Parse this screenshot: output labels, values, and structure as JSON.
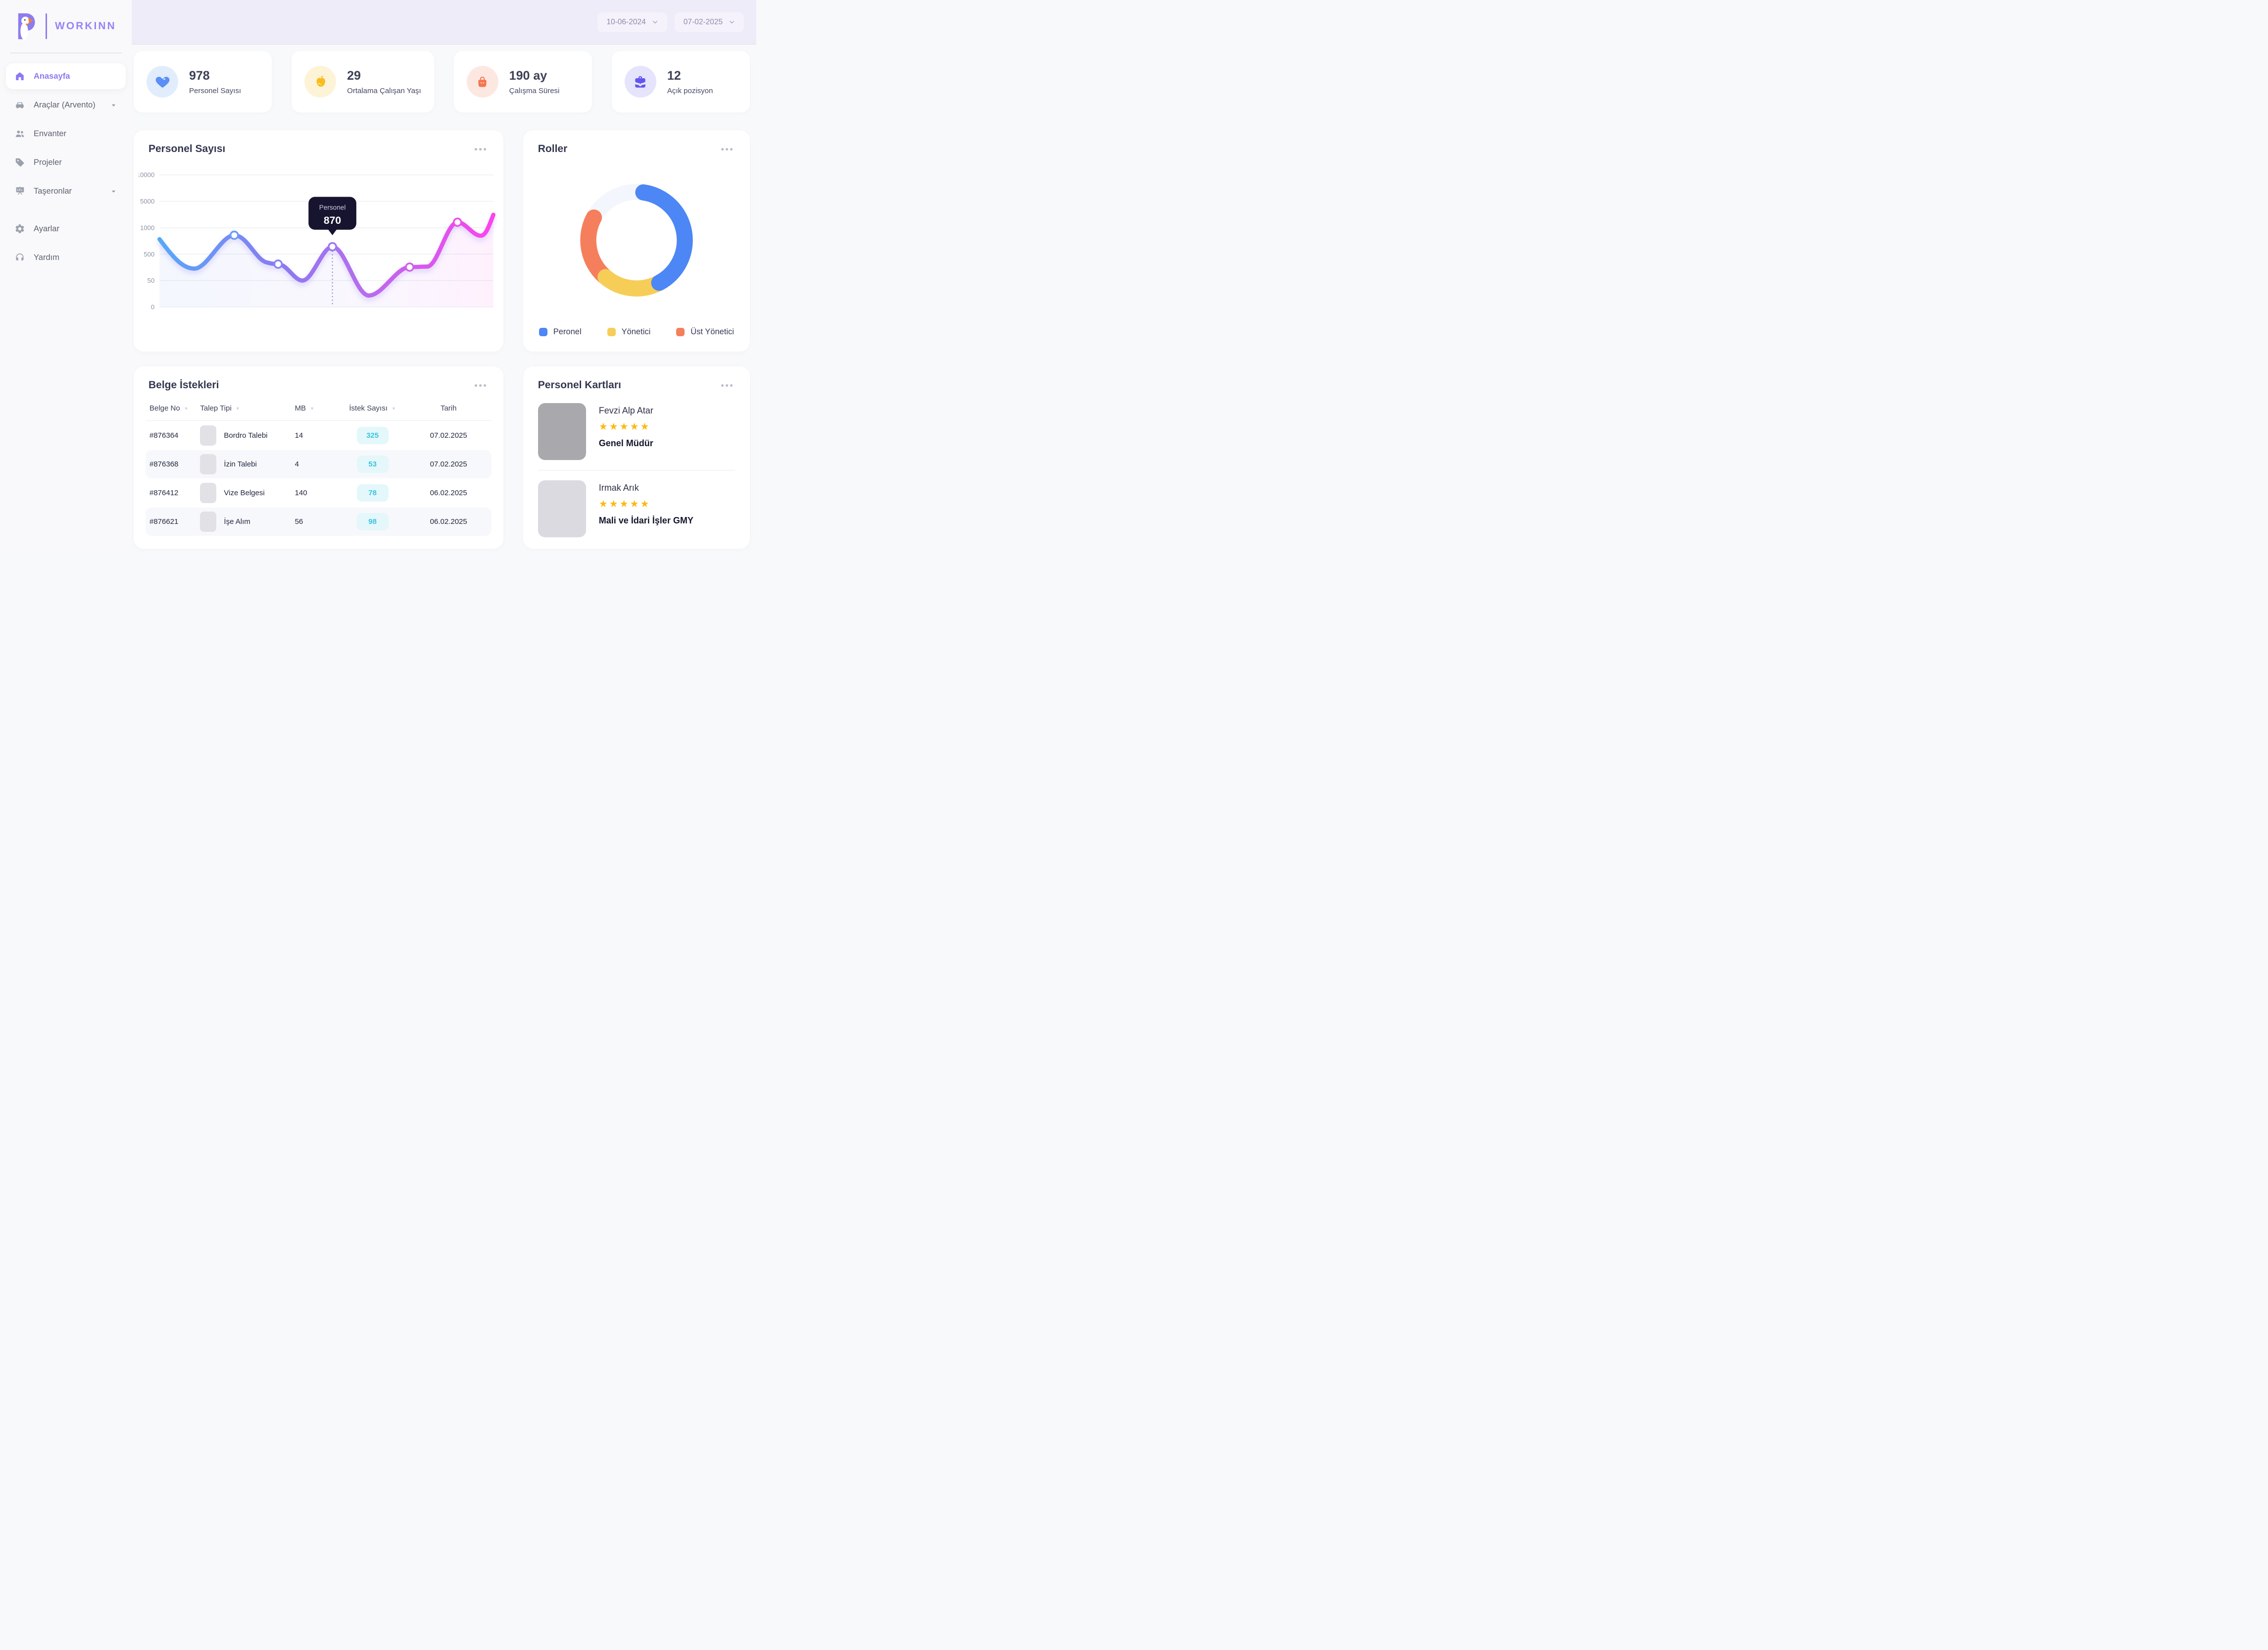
{
  "brand": {
    "name": "WORKINN"
  },
  "header": {
    "date_from": "10-06-2024",
    "date_to": "07-02-2025"
  },
  "sidebar": {
    "items": [
      {
        "label": "Anasayfa",
        "icon": "home-icon",
        "active": true
      },
      {
        "label": "Araçlar (Arvento)",
        "icon": "car-icon",
        "expandable": true
      },
      {
        "label": "Envanter",
        "icon": "people-icon"
      },
      {
        "label": "Projeler",
        "icon": "tag-icon"
      },
      {
        "label": "Taşeronlar",
        "icon": "presentation-icon",
        "expandable": true
      },
      {
        "label": "Ayarlar",
        "icon": "gear-icon",
        "group_gap": true
      },
      {
        "label": "Yardım",
        "icon": "headset-icon"
      }
    ]
  },
  "stats": [
    {
      "value": "978",
      "label": "Personel Sayısı",
      "icon": "heart-icon",
      "icon_color": "#5b8ef7",
      "icon_bg": "#e1edfd"
    },
    {
      "value": "29",
      "label": "Ortalama Çalışan Yaşı",
      "icon": "apple-icon",
      "icon_color": "#fbbc1b",
      "icon_bg": "#fdf3d7"
    },
    {
      "value": "190 ay",
      "label": "Çalışma Süresi",
      "icon": "bag-icon",
      "icon_color": "#f4764f",
      "icon_bg": "#fde8e1"
    },
    {
      "value": "12",
      "label": "Açık pozisyon",
      "icon": "briefcase-icon",
      "icon_color": "#6355f0",
      "icon_bg": "#e6e3fc"
    }
  ],
  "chart": {
    "title": "Personel Sayısı",
    "y_ticks": [
      "10000",
      "5000",
      "1000",
      "500",
      "50",
      "0"
    ],
    "tooltip": {
      "label": "Personel",
      "value": "870"
    },
    "line_gradient": [
      "#57a8f8",
      "#8a7af2",
      "#b86cee",
      "#fb43ee"
    ]
  },
  "roller": {
    "title": "Roller",
    "track_color": "#f3f7fd",
    "legend": [
      {
        "label": "Peronel",
        "color": "#4d86f5"
      },
      {
        "label": "Yönetici",
        "color": "#f6ce57"
      },
      {
        "label": "Üst Yönetici",
        "color": "#f57f5c"
      }
    ]
  },
  "table": {
    "title": "Belge İstekleri",
    "badge_bg": "#e4f7fb",
    "badge_color": "#3cc3dd",
    "columns": [
      {
        "label": "Belge No",
        "filterable": true
      },
      {
        "label": "Talep Tipi",
        "filterable": true
      },
      {
        "label": "MB",
        "filterable": true
      },
      {
        "label": "İstek Sayısı",
        "filterable": true
      },
      {
        "label": "Tarih",
        "filterable": false
      }
    ],
    "rows": [
      {
        "no": "#876364",
        "type": "Bordro Talebi",
        "mb": "14",
        "count": "325",
        "date": "07.02.2025"
      },
      {
        "no": "#876368",
        "type": "İzin Talebi",
        "mb": "4",
        "count": "53",
        "date": "07.02.2025"
      },
      {
        "no": "#876412",
        "type": "Vize Belgesi",
        "mb": "140",
        "count": "78",
        "date": "06.02.2025"
      },
      {
        "no": "#876621",
        "type": "İşe Alım",
        "mb": "56",
        "count": "98",
        "date": "06.02.2025"
      }
    ]
  },
  "people": {
    "title": "Personel Kartları",
    "star_color": "#fbba11",
    "cards": [
      {
        "name": "Fevzi Alp Atar",
        "role": "Genel Müdür",
        "stars": 5,
        "avatar_color": "#a9a9ad"
      },
      {
        "name": "Irmak Arık",
        "role": "Mali ve İdari İşler GMY",
        "stars": 5,
        "avatar_color": "#dadae0"
      }
    ]
  },
  "chart_data": [
    {
      "type": "line",
      "title": "Personel Sayısı",
      "y_tick_labels": [
        10000,
        5000,
        1000,
        500,
        50,
        0
      ],
      "grid": true,
      "highlighted_point": {
        "label": "Personel",
        "value": 870
      },
      "series": [
        {
          "name": "Personel",
          "values_est": [
            800,
            350,
            950,
            430,
            180,
            870,
            90,
            400,
            1800,
            1100,
            2500
          ]
        }
      ]
    },
    {
      "type": "donut",
      "title": "Roller",
      "segments": [
        {
          "label": "Peronel",
          "percent_est": 40
        },
        {
          "label": "Yönetici",
          "percent_est": 18
        },
        {
          "label": "Üst Yönetici",
          "percent_est": 22
        }
      ],
      "unfilled_percent_est": 20,
      "legend_position": "bottom"
    }
  ]
}
